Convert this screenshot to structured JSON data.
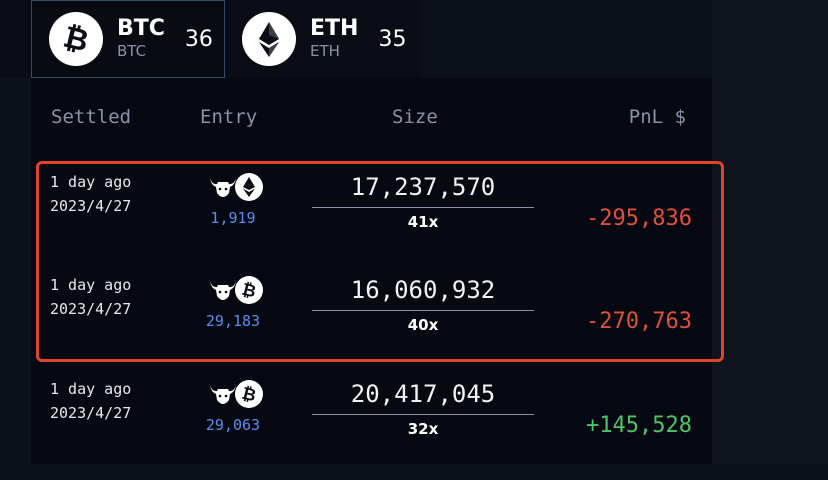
{
  "tabs": [
    {
      "name": "BTC",
      "sub": "BTC",
      "count": "36",
      "icon": "bitcoin-icon",
      "selected": true
    },
    {
      "name": "ETH",
      "sub": "ETH",
      "count": "35",
      "icon": "ethereum-icon",
      "selected": false
    }
  ],
  "table": {
    "headers": {
      "settled": "Settled",
      "entry": "Entry",
      "size": "Size",
      "pnl": "PnL $"
    },
    "rows": [
      {
        "settled_ago": "1 day ago",
        "settled_date": "2023/4/27",
        "direction_icon": "bull-icon",
        "coin_icon": "ethereum-icon",
        "entry": "1,919",
        "size": "17,237,570",
        "leverage": "41x",
        "pnl": "-295,836"
      },
      {
        "settled_ago": "1 day ago",
        "settled_date": "2023/4/27",
        "direction_icon": "bull-icon",
        "coin_icon": "bitcoin-icon",
        "entry": "29,183",
        "size": "16,060,932",
        "leverage": "40x",
        "pnl": "-270,763"
      },
      {
        "settled_ago": "1 day ago",
        "settled_date": "2023/4/27",
        "direction_icon": "bull-icon",
        "coin_icon": "bitcoin-icon",
        "entry": "29,063",
        "size": "20,417,045",
        "leverage": "32x",
        "pnl": "+145,528"
      }
    ]
  },
  "colors": {
    "loss": "#e04f3b",
    "profit": "#4fc36a",
    "entry_price": "#5b8def",
    "highlight": "#e2432d"
  }
}
